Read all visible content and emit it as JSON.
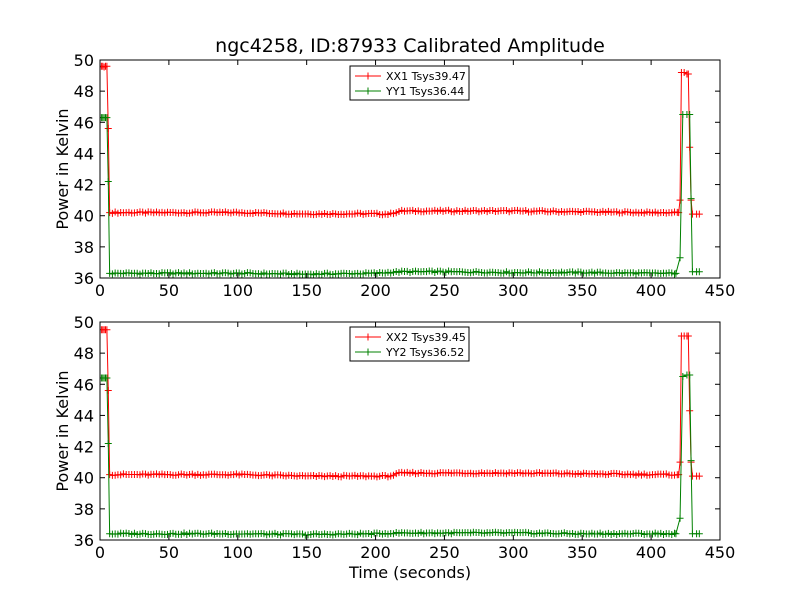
{
  "figure": {
    "title": "ngc4258, ID:87933 Calibrated Amplitude"
  },
  "colors": {
    "xx": "#ff0000",
    "yy": "#008000"
  },
  "chart_data": [
    {
      "type": "line",
      "title": "ngc4258, ID:87933 Calibrated Amplitude",
      "xlabel": "",
      "ylabel": "Power in Kelvin",
      "xlim": [
        0,
        450
      ],
      "ylim": [
        36,
        50
      ],
      "xticks": [
        0,
        50,
        100,
        150,
        200,
        250,
        300,
        350,
        400,
        450
      ],
      "yticks": [
        36,
        38,
        40,
        42,
        44,
        46,
        48,
        50
      ],
      "legend_position": "top-center",
      "marker": "+",
      "series": [
        {
          "name": "XX1 Tsys39.47",
          "color": "#ff0000",
          "start": [
            [
              1,
              49.6
            ],
            [
              2,
              49.6
            ],
            [
              3,
              49.55
            ],
            [
              4,
              49.6
            ],
            [
              5,
              49.6
            ],
            [
              6,
              45.6
            ],
            [
              7,
              40.2
            ]
          ],
          "baseline": [
            [
              7,
              40.2
            ],
            [
              50,
              40.2
            ],
            [
              100,
              40.2
            ],
            [
              150,
              40.12
            ],
            [
              200,
              40.12
            ],
            [
              210,
              40.1
            ],
            [
              218,
              40.3
            ],
            [
              250,
              40.3
            ],
            [
              300,
              40.3
            ],
            [
              350,
              40.25
            ],
            [
              400,
              40.2
            ],
            [
              420,
              40.2
            ]
          ],
          "end": [
            [
              420,
              40.2
            ],
            [
              421,
              41.0
            ],
            [
              422,
              49.2
            ],
            [
              424,
              49.2
            ],
            [
              426,
              49.1
            ],
            [
              427,
              49.1
            ],
            [
              428,
              44.4
            ],
            [
              429,
              41.0
            ],
            [
              430,
              40.1
            ],
            [
              433,
              40.1
            ],
            [
              435,
              40.1
            ]
          ]
        },
        {
          "name": "YY1 Tsys36.44",
          "color": "#008000",
          "start": [
            [
              1,
              46.3
            ],
            [
              2,
              46.3
            ],
            [
              3,
              46.3
            ],
            [
              4,
              46.3
            ],
            [
              5,
              46.3
            ],
            [
              6,
              42.2
            ],
            [
              7,
              36.3
            ]
          ],
          "baseline": [
            [
              7,
              36.3
            ],
            [
              50,
              36.3
            ],
            [
              100,
              36.3
            ],
            [
              150,
              36.25
            ],
            [
              200,
              36.3
            ],
            [
              218,
              36.4
            ],
            [
              250,
              36.4
            ],
            [
              300,
              36.35
            ],
            [
              350,
              36.35
            ],
            [
              400,
              36.3
            ],
            [
              418,
              36.3
            ]
          ],
          "end": [
            [
              418,
              36.3
            ],
            [
              421,
              37.3
            ],
            [
              423,
              46.5
            ],
            [
              426,
              46.5
            ],
            [
              428,
              46.5
            ],
            [
              429,
              41.1
            ],
            [
              430,
              36.4
            ],
            [
              433,
              36.4
            ],
            [
              435,
              36.4
            ]
          ]
        }
      ]
    },
    {
      "type": "line",
      "xlabel": "Time (seconds)",
      "ylabel": "Power in Kelvin",
      "xlim": [
        0,
        450
      ],
      "ylim": [
        36,
        50
      ],
      "xticks": [
        0,
        50,
        100,
        150,
        200,
        250,
        300,
        350,
        400,
        450
      ],
      "yticks": [
        36,
        38,
        40,
        42,
        44,
        46,
        48,
        50
      ],
      "legend_position": "top-center",
      "marker": "+",
      "series": [
        {
          "name": "XX2 Tsys39.45",
          "color": "#ff0000",
          "start": [
            [
              1,
              49.5
            ],
            [
              2,
              49.5
            ],
            [
              3,
              49.5
            ],
            [
              4,
              49.5
            ],
            [
              5,
              49.5
            ],
            [
              6,
              45.6
            ],
            [
              7,
              40.2
            ]
          ],
          "baseline": [
            [
              7,
              40.2
            ],
            [
              50,
              40.2
            ],
            [
              100,
              40.2
            ],
            [
              150,
              40.1
            ],
            [
              200,
              40.1
            ],
            [
              210,
              40.1
            ],
            [
              218,
              40.3
            ],
            [
              250,
              40.3
            ],
            [
              300,
              40.3
            ],
            [
              350,
              40.25
            ],
            [
              400,
              40.2
            ],
            [
              420,
              40.2
            ]
          ],
          "end": [
            [
              420,
              40.2
            ],
            [
              421,
              41.0
            ],
            [
              422,
              49.1
            ],
            [
              424,
              49.1
            ],
            [
              426,
              49.1
            ],
            [
              427,
              49.1
            ],
            [
              428,
              44.3
            ],
            [
              429,
              41.0
            ],
            [
              430,
              40.1
            ],
            [
              433,
              40.1
            ],
            [
              435,
              40.1
            ]
          ]
        },
        {
          "name": "YY2 Tsys36.52",
          "color": "#008000",
          "start": [
            [
              1,
              46.4
            ],
            [
              2,
              46.4
            ],
            [
              3,
              46.4
            ],
            [
              4,
              46.4
            ],
            [
              5,
              46.4
            ],
            [
              6,
              42.2
            ],
            [
              7,
              36.4
            ]
          ],
          "baseline": [
            [
              7,
              36.4
            ],
            [
              50,
              36.4
            ],
            [
              100,
              36.4
            ],
            [
              150,
              36.35
            ],
            [
              200,
              36.4
            ],
            [
              218,
              36.45
            ],
            [
              250,
              36.45
            ],
            [
              300,
              36.45
            ],
            [
              350,
              36.4
            ],
            [
              400,
              36.4
            ],
            [
              418,
              36.4
            ]
          ],
          "end": [
            [
              418,
              36.4
            ],
            [
              421,
              37.4
            ],
            [
              423,
              46.5
            ],
            [
              426,
              46.6
            ],
            [
              428,
              46.6
            ],
            [
              429,
              41.1
            ],
            [
              430,
              36.4
            ],
            [
              433,
              36.4
            ],
            [
              435,
              36.4
            ]
          ]
        }
      ]
    }
  ]
}
